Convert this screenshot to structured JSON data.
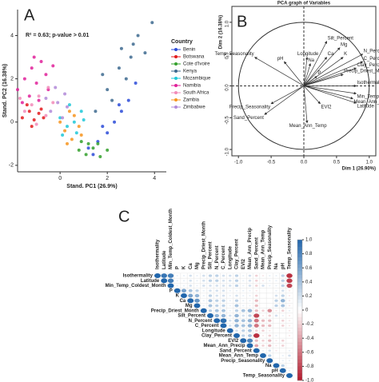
{
  "chart_data": [
    {
      "type": "scatter",
      "panel": "A",
      "annotation": "R² = 0.63; p-value > 0.01",
      "x_label": "Stand. PC1 (26.9%)",
      "y_label": "Stand. PC2 (16.38%)",
      "legend_title": "Country",
      "xlim": [
        -1.8,
        4.5
      ],
      "ylim": [
        -2.3,
        5.2
      ],
      "xticks": [
        0,
        2,
        4
      ],
      "yticks": [
        -2,
        0,
        2,
        4
      ],
      "series": [
        {
          "name": "Benin",
          "color": "#2b4bd8",
          "x": [
            1.2,
            1.6,
            2.0,
            2.3,
            2.6,
            2.9,
            3.2,
            1.8,
            2.5,
            1.4
          ],
          "y": [
            -1.2,
            -0.9,
            -0.5,
            0,
            0.5,
            1,
            1.8,
            -0.2,
            0.8,
            -1.5
          ]
        },
        {
          "name": "Botswana",
          "color": "#e31a1c",
          "x": [
            -1.6,
            -1.3,
            -1.1,
            -0.9,
            -1.4,
            -0.7,
            -1.2,
            -0.8
          ],
          "y": [
            0.2,
            0.5,
            0.1,
            0.4,
            0.8,
            0.2,
            -0.2,
            0.6
          ]
        },
        {
          "name": "Cote d'Ivoire",
          "color": "#33a02c",
          "x": [
            0.8,
            1.1,
            1.4,
            1.7,
            2.0,
            1.2,
            1.6,
            0.9
          ],
          "y": [
            -1.3,
            -1.5,
            -1.2,
            -1.6,
            -1.3,
            -1.0,
            -1.0,
            -0.9
          ]
        },
        {
          "name": "Kenya",
          "color": "#3d6a8f",
          "x": [
            1.5,
            2.0,
            2.5,
            3.0,
            3.3,
            3.6,
            2.8,
            2.2,
            3.9,
            3.1,
            2.6,
            1.8
          ],
          "y": [
            0.5,
            1.5,
            2.5,
            3.0,
            4.0,
            3.2,
            2.0,
            1.0,
            4.6,
            3.6,
            3.4,
            2.2
          ]
        },
        {
          "name": "Mozambique",
          "color": "#1ec8d8",
          "x": [
            0,
            0.3,
            0.6,
            0.9,
            0.4,
            0.7,
            0.1,
            1.0
          ],
          "y": [
            0.2,
            -0.2,
            0,
            0.5,
            0.8,
            -0.5,
            -0.6,
            0.1
          ]
        },
        {
          "name": "Namibia",
          "color": "#e0219a",
          "x": [
            -1.8,
            -1.5,
            -1.2,
            -1.0,
            -0.8,
            -0.5,
            -1.6,
            -1.3,
            -0.9,
            -0.6,
            -1.1,
            -0.3
          ],
          "y": [
            1.5,
            2.0,
            2.5,
            1.8,
            2.8,
            1.5,
            0.9,
            1.2,
            1.0,
            2.2,
            3.0,
            2.6
          ]
        },
        {
          "name": "South Africa",
          "color": "#f28bb8",
          "x": [
            -1.5,
            -1.2,
            -0.9,
            -0.6,
            -0.3,
            -1.0,
            -0.5,
            -1.7
          ],
          "y": [
            0.5,
            0.8,
            1.2,
            0.3,
            0.9,
            -0.1,
            1.6,
            1.1
          ]
        },
        {
          "name": "Zambia",
          "color": "#f7941d",
          "x": [
            0.2,
            0.5,
            0.8,
            0.3,
            0.6,
            0.0,
            0.9,
            0.4
          ],
          "y": [
            -0.4,
            -0.8,
            -0.2,
            -1.0,
            0.3,
            0,
            -0.6,
            0.5
          ]
        },
        {
          "name": "Zimbabwe",
          "color": "#b28ad8",
          "x": [
            -0.4,
            -0.1,
            0.2,
            -0.2,
            0.1,
            -0.6,
            0.3
          ],
          "y": [
            0.5,
            0.9,
            1.3,
            1.6,
            0.2,
            1.1,
            0.7
          ]
        }
      ]
    },
    {
      "type": "pca_variables",
      "panel": "B",
      "title": "PCA graph of Variables",
      "x_label": "Dim 1 (26.90%)",
      "y_label": "Dim 2 (16.38%)",
      "xlim": [
        -1.1,
        1.1
      ],
      "ylim": [
        -1.1,
        1.25
      ],
      "xticks": [
        {
          "value": -1,
          "label": "-1.0"
        },
        {
          "value": -0.5,
          "label": "-0.5"
        },
        {
          "value": 0,
          "label": "0.0"
        },
        {
          "value": 0.5,
          "label": "0.5"
        },
        {
          "value": 1,
          "label": "1.0"
        }
      ],
      "yticks": [
        {
          "value": -1,
          "label": "-1.0"
        },
        {
          "value": -0.5,
          "label": "-0.5"
        },
        {
          "value": 0,
          "label": "0.0"
        },
        {
          "value": 0.5,
          "label": "0.5"
        },
        {
          "value": 1,
          "label": "1.0"
        }
      ],
      "color": "#333333",
      "categories": [
        "Silt_Percent",
        "Temp_Seasonality",
        "Mg",
        "Ca",
        "K",
        "N_Percent",
        "C_Percent",
        "Clay_Percent",
        "Precip_Driest_Month",
        "Isothermality",
        "Min_Temp_Coldest_Month",
        "Mean_Ann_Precip",
        "Latitude",
        "Longitude",
        "pH",
        "Na",
        "P",
        "EVI2",
        "Precip_Seasonality",
        "Sand_Percent",
        "Mean_Ann_Temp"
      ],
      "x": [
        0.35,
        -0.75,
        0.55,
        0.35,
        0.6,
        0.9,
        0.9,
        0.8,
        0.6,
        0.8,
        0.8,
        0.75,
        0.8,
        0.05,
        -0.3,
        0.1,
        0.2,
        0.25,
        -0.5,
        -0.6,
        0.05
      ],
      "values": [
        0.7,
        0.45,
        0.6,
        0.45,
        0.45,
        0.5,
        0.38,
        0.28,
        0.18,
        0,
        -0.12,
        -0.2,
        -0.27,
        0.45,
        0.38,
        0.35,
        0.15,
        -0.28,
        -0.28,
        -0.45,
        -0.58
      ]
    },
    {
      "type": "correlation",
      "panel": "C",
      "variables": [
        "Isothermality",
        "Latitude",
        "Min_Temp_Coldest_Month",
        "P",
        "K",
        "Ca",
        "Mg",
        "Precip_Driest_Month",
        "Silt_Percent",
        "N_Percent",
        "C_Percent",
        "Longitude",
        "Clay_Percent",
        "EVI2",
        "Mean_Ann_Precip",
        "Sand_Percent",
        "Mean_Ann_Temp",
        "Precip_Seasonality",
        "Na",
        "pH",
        "Temp_Seasonality"
      ],
      "matrix": [
        [
          1,
          0.9,
          0.85,
          0.1,
          0.1,
          0.2,
          0.1,
          0.2,
          0.3,
          0.3,
          0.2,
          0.2,
          0.3,
          0.1,
          0.2,
          -0.2,
          -0.1,
          0.1,
          0.1,
          0.3,
          -0.9
        ],
        [
          1,
          0.85,
          0.1,
          0.1,
          0.2,
          0.1,
          0.2,
          0.3,
          0.3,
          0.2,
          0.2,
          0.3,
          0.1,
          0.2,
          -0.2,
          -0.1,
          0.1,
          0.1,
          0.3,
          -0.85
        ],
        [
          1,
          0.1,
          0.1,
          0.2,
          0.1,
          0.2,
          0.2,
          0.2,
          0.2,
          0.2,
          0.3,
          0.1,
          0.2,
          -0.2,
          0.2,
          0.1,
          0.1,
          0.3,
          -0.8
        ],
        [
          1,
          0.6,
          0.4,
          0.3,
          0.1,
          0.2,
          0.2,
          0.2,
          0.1,
          0.1,
          0.1,
          0.1,
          -0.1,
          0,
          0,
          0.1,
          0.2,
          -0.1
        ],
        [
          1,
          0.6,
          0.5,
          0.1,
          0.3,
          0.2,
          0.2,
          0.1,
          0.2,
          0.1,
          0.1,
          -0.2,
          0,
          0,
          0.2,
          0.3,
          -0.1
        ],
        [
          1,
          0.7,
          0.1,
          0.4,
          0.3,
          0.3,
          0.1,
          0.3,
          0.1,
          0.1,
          -0.3,
          0,
          0,
          0.3,
          0.5,
          -0.1
        ],
        [
          1,
          0.1,
          0.4,
          0.3,
          0.3,
          0.1,
          0.4,
          0.1,
          0.1,
          -0.3,
          0,
          0,
          0.3,
          0.4,
          -0.1
        ],
        [
          1,
          0.3,
          0.4,
          0.4,
          0.1,
          0.3,
          0.4,
          0.5,
          -0.3,
          -0.2,
          -0.5,
          -0.1,
          -0.2,
          0.1
        ],
        [
          1,
          0.5,
          0.5,
          0.2,
          0.5,
          0.2,
          0.3,
          -0.8,
          -0.1,
          -0.2,
          0.2,
          0.1,
          -0.1
        ],
        [
          1,
          0.95,
          0.2,
          0.5,
          0.4,
          0.5,
          -0.6,
          -0.3,
          -0.3,
          0,
          -0.2,
          -0.1
        ],
        [
          1,
          0.2,
          0.5,
          0.4,
          0.5,
          -0.6,
          -0.3,
          -0.3,
          0,
          -0.2,
          -0.1
        ],
        [
          1,
          0.2,
          0.3,
          0.4,
          -0.2,
          -0.2,
          -0.1,
          0,
          0,
          -0.1
        ],
        [
          1,
          0.3,
          0.4,
          -0.9,
          -0.1,
          -0.2,
          0.1,
          0,
          -0.1
        ],
        [
          1,
          0.8,
          -0.3,
          -0.2,
          -0.3,
          -0.1,
          -0.2,
          0
        ],
        [
          1,
          -0.4,
          -0.2,
          -0.3,
          -0.1,
          -0.2,
          0
        ],
        [
          1,
          0.1,
          0.2,
          -0.1,
          0,
          0.1
        ],
        [
          1,
          0.3,
          0,
          0.1,
          0.2
        ],
        [
          1,
          0,
          0.1,
          0.1
        ],
        [
          1,
          0.3,
          0
        ],
        [
          1,
          0.1
        ],
        [
          1
        ]
      ],
      "colorbar_ticks": [
        {
          "value": 1,
          "label": "1.0"
        },
        {
          "value": 0.8,
          "label": "0.8"
        },
        {
          "value": 0.6,
          "label": "0.6"
        },
        {
          "value": 0.4,
          "label": "0.4"
        },
        {
          "value": 0.2,
          "label": "0.2"
        },
        {
          "value": 0,
          "label": "0"
        },
        {
          "value": -0.2,
          "label": "-0.2"
        },
        {
          "value": -0.4,
          "label": "-0.4"
        },
        {
          "value": -0.6,
          "label": "-0.6"
        },
        {
          "value": -0.8,
          "label": "-0.8"
        },
        {
          "value": -1,
          "label": "-1.0"
        }
      ],
      "positive_color": "#2166ac",
      "negative_color": "#b2182b"
    }
  ]
}
